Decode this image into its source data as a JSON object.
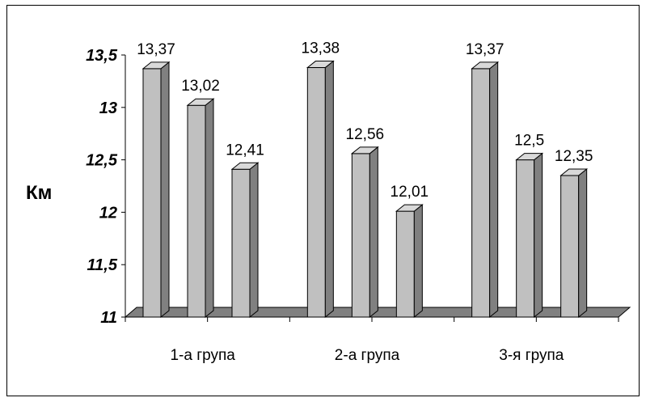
{
  "chart_data": {
    "type": "bar",
    "title": "",
    "xlabel": "",
    "ylabel": "Км",
    "categories": [
      "1-а група",
      "2-а група",
      "3-я група"
    ],
    "series": [
      {
        "values": [
          13.37,
          13.38,
          13.37
        ]
      },
      {
        "values": [
          13.02,
          12.56,
          12.5
        ]
      },
      {
        "values": [
          12.41,
          12.01,
          12.35
        ]
      }
    ],
    "data_labels": [
      [
        "13,37",
        "13,02",
        "12,41"
      ],
      [
        "13,38",
        "12,56",
        "12,01"
      ],
      [
        "13,37",
        "12,5",
        "12,35"
      ]
    ],
    "ylim": [
      11,
      13.5
    ],
    "yticks": [
      {
        "value": 11,
        "label": "11"
      },
      {
        "value": 11.5,
        "label": "11,5"
      },
      {
        "value": 12,
        "label": "12"
      },
      {
        "value": 12.5,
        "label": "12,5"
      },
      {
        "value": 13,
        "label": "13"
      },
      {
        "value": 13.5,
        "label": "13,5"
      }
    ],
    "grid": false,
    "legend": "none",
    "style": "3d",
    "colors": {
      "bar_front": "#c0c0c0",
      "bar_side": "#808080",
      "bar_top": "#d9d9d9",
      "floor": "#808080",
      "outline": "#000000"
    }
  }
}
